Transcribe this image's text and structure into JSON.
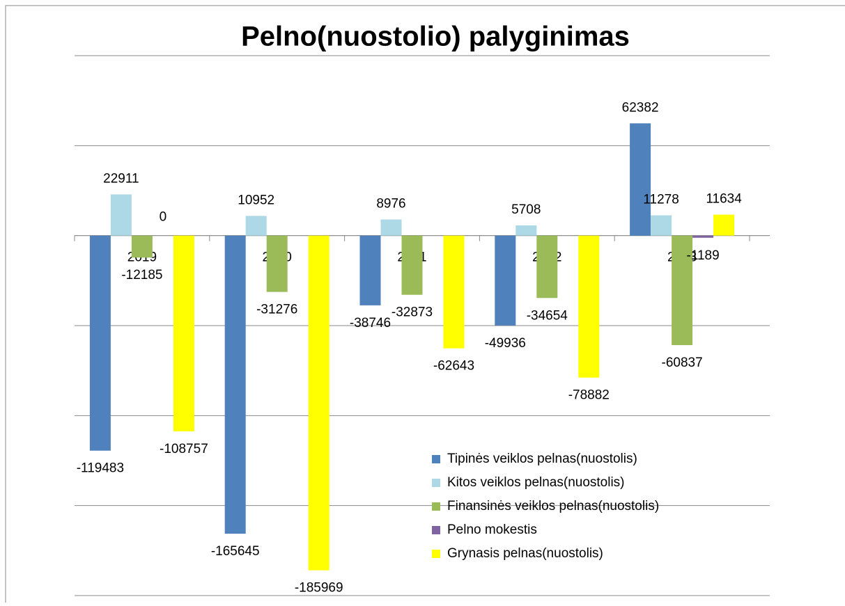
{
  "chart_data": {
    "type": "bar",
    "title": "Pelno(nuostolio) palyginimas",
    "categories": [
      "2019",
      "2020",
      "2021",
      "2022",
      "2023"
    ],
    "series": [
      {
        "name": "Tipinės veiklos pelnas(nuostolis)",
        "color": "#4f81bd",
        "values": [
          -119483,
          -165645,
          -38746,
          -49936,
          62382
        ]
      },
      {
        "name": "Kitos veiklos pelnas(nuostolis)",
        "color": "#add8e6",
        "values": [
          22911,
          10952,
          8976,
          5708,
          11278
        ]
      },
      {
        "name": "Finansinės veiklos pelnas(nuostolis)",
        "color": "#9bbb59",
        "values": [
          -12185,
          -31276,
          -32873,
          -34654,
          -60837
        ]
      },
      {
        "name": "Pelno mokestis",
        "color": "#8064a2",
        "values": [
          0,
          null,
          null,
          null,
          -1189
        ]
      },
      {
        "name": "Grynasis pelnas(nuostolis)",
        "color": "#ffff00",
        "values": [
          -108757,
          -185969,
          -62643,
          -78882,
          11634
        ]
      }
    ],
    "ylim": [
      -200000,
      100000
    ],
    "yticks": [
      -200000,
      -150000,
      -100000,
      -50000,
      0,
      50000,
      100000
    ],
    "grid": true,
    "legend": "lower-right"
  }
}
